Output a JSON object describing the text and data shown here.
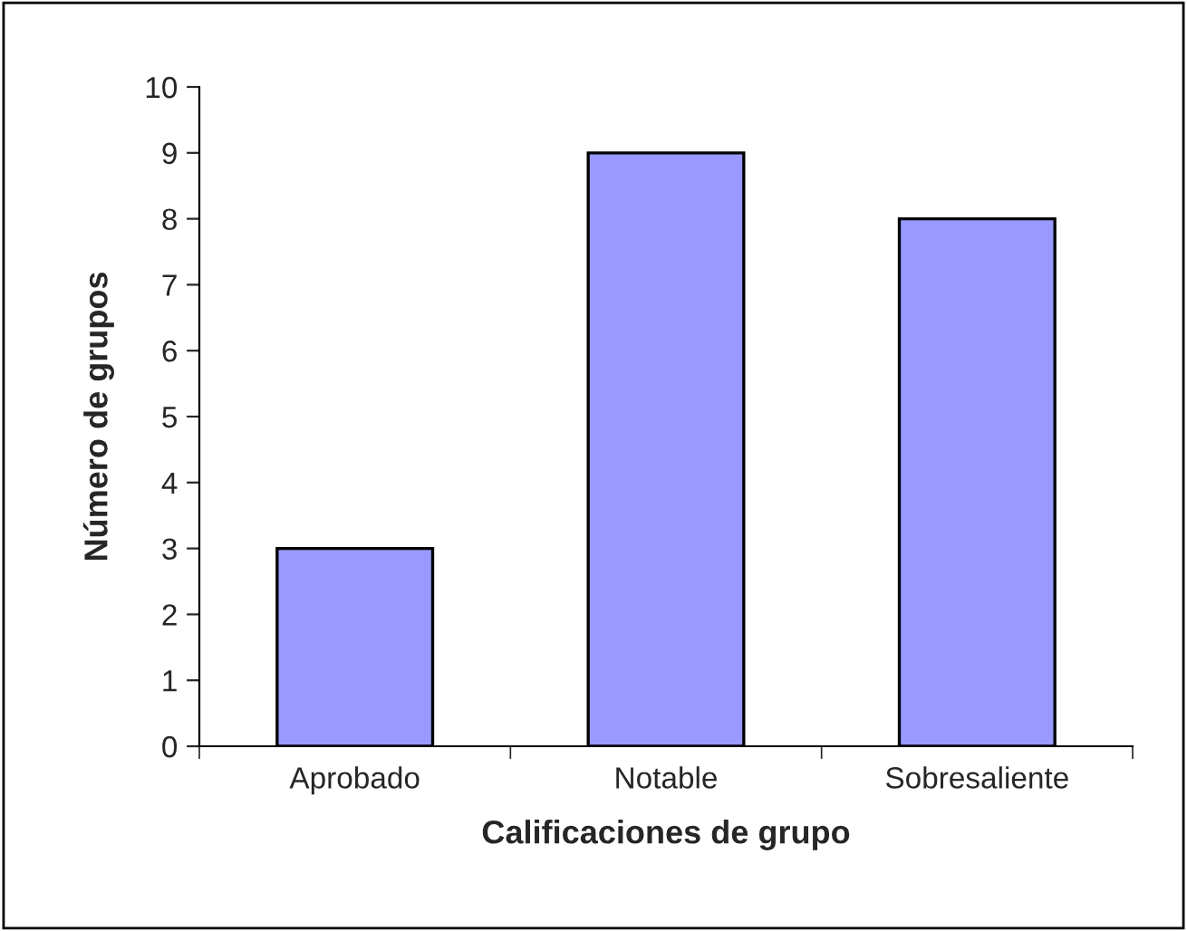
{
  "chart_data": {
    "type": "bar",
    "xlabel": "Calificaciones de grupo",
    "ylabel": "Número de grupos",
    "categories": [
      "Aprobado",
      "Notable",
      "Sobresaliente"
    ],
    "series": [
      {
        "color": "#9999ff",
        "values": [
          3,
          9,
          8
        ]
      }
    ],
    "ylim": [
      0,
      10
    ],
    "yticks": [
      0,
      1,
      2,
      3,
      4,
      5,
      6,
      7,
      8,
      9,
      10
    ],
    "grid": false
  }
}
